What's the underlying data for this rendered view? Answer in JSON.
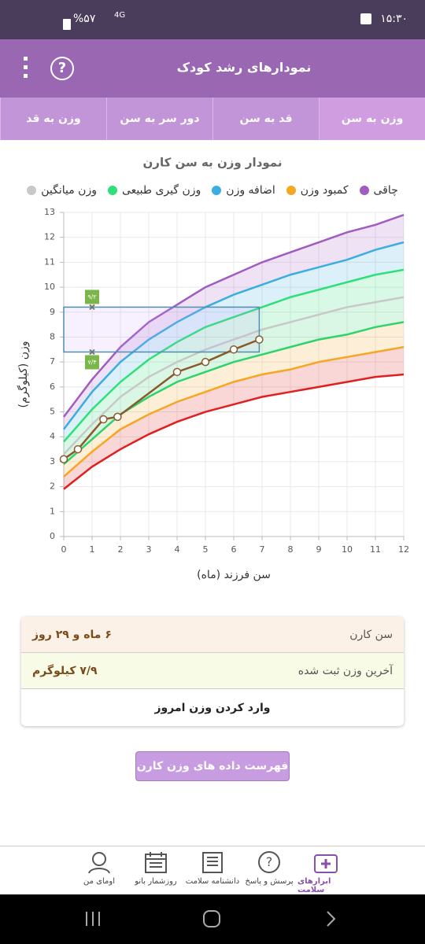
{
  "status": {
    "time": "۱۵:۳۰",
    "battery": "%۵۷",
    "network": "4G"
  },
  "header": {
    "title": "نمودارهای رشد کودک"
  },
  "tabs": [
    "وزن به سن",
    "قد به سن",
    "دور سر به سن",
    "وزن به قد"
  ],
  "chart_data": {
    "type": "line",
    "title": "نمودار وزن به سن کارن",
    "x_label": "سن فرزند (ماه)",
    "y_label": "وزن (کیلوگرم)",
    "x": [
      0,
      1,
      2,
      3,
      4,
      5,
      6,
      7,
      8,
      9,
      10,
      11,
      12
    ],
    "xlim": [
      0,
      12
    ],
    "ylim": [
      0,
      13
    ],
    "xticks": [
      0,
      1,
      2,
      3,
      4,
      5,
      6,
      7,
      8,
      9,
      10,
      11,
      12
    ],
    "yticks": [
      0,
      1,
      2,
      3,
      4,
      5,
      6,
      7,
      8,
      9,
      10,
      11,
      12,
      13
    ],
    "grid": true,
    "series": [
      {
        "name": "چاقی",
        "color": "#a05cc0",
        "values": [
          4.8,
          6.3,
          7.6,
          8.6,
          9.3,
          10.0,
          10.5,
          11.0,
          11.4,
          11.8,
          12.2,
          12.5,
          12.9
        ]
      },
      {
        "name": "کمبود وزن",
        "color": "#f5a623",
        "values": [
          2.4,
          3.4,
          4.3,
          4.9,
          5.4,
          5.8,
          6.2,
          6.5,
          6.7,
          7.0,
          7.2,
          7.4,
          7.6
        ]
      },
      {
        "name": "اضافه وزن",
        "color": "#3aaee0",
        "values": [
          4.3,
          5.8,
          7.0,
          7.9,
          8.6,
          9.2,
          9.7,
          10.1,
          10.5,
          10.8,
          11.1,
          11.5,
          11.8
        ]
      },
      {
        "name": "وزن گیری طبیعی",
        "color": "#2ee07a",
        "values": [
          3.8,
          5.1,
          6.2,
          7.1,
          7.8,
          8.4,
          8.8,
          9.2,
          9.6,
          9.9,
          10.2,
          10.5,
          10.7
        ]
      },
      {
        "name": "وزن میانگین",
        "color": "#c8c8c8",
        "values": [
          3.3,
          4.5,
          5.6,
          6.4,
          7.0,
          7.5,
          7.9,
          8.3,
          8.6,
          8.9,
          9.2,
          9.4,
          9.6
        ]
      },
      {
        "color": "#2ed36b",
        "values": [
          2.9,
          3.9,
          4.9,
          5.6,
          6.2,
          6.6,
          7.0,
          7.3,
          7.6,
          7.9,
          8.1,
          8.4,
          8.6
        ]
      },
      {
        "color": "#e02020",
        "values": [
          1.9,
          2.8,
          3.5,
          4.1,
          4.6,
          5.0,
          5.3,
          5.6,
          5.8,
          6.0,
          6.2,
          6.4,
          6.5
        ]
      }
    ],
    "points": {
      "color": "#8b5a2b",
      "x": [
        0,
        0.5,
        1.4,
        1.9,
        4,
        5,
        6,
        6.9
      ],
      "values": [
        3.1,
        3.5,
        4.7,
        4.8,
        6.6,
        7.0,
        7.5,
        7.9
      ]
    },
    "range": {
      "x": 1,
      "color": "#7ab648",
      "high": {
        "value": 9.2,
        "label": "۹/۲"
      },
      "low": {
        "value": 7.4,
        "label": "۷/۴"
      }
    }
  },
  "card": {
    "age_label": "سن کارن",
    "age": "۶ ماه و ۲۹ روز",
    "weight_label": "آخرین وزن ثبت شده",
    "weight": "۷/۹ کیلوگرم",
    "action": "وارد کردن وزن امروز"
  },
  "button": "فهرست داده های وزن کارن",
  "nav": [
    "ابزارهای سلامت",
    "پرسش و پاسخ",
    "دانشنامه سلامت",
    "روزشمار بانو",
    "اومای من"
  ]
}
